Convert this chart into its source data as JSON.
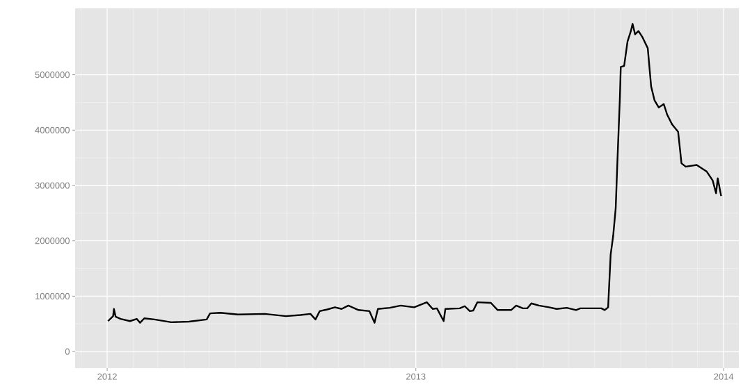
{
  "chart_data": {
    "type": "line",
    "color": "#000000",
    "grid": true,
    "line_style": "solid",
    "xlim": [
      "2011-11-24",
      "2014-01-19"
    ],
    "ylim": [
      -300000,
      6200000
    ],
    "xticks": [
      "2012",
      "2013",
      "2014"
    ],
    "yticks": [
      0,
      1000000,
      2000000,
      3000000,
      4000000,
      5000000
    ],
    "x": [
      "2012-01-02",
      "2012-01-08",
      "2012-01-09",
      "2012-01-11",
      "2012-01-17",
      "2012-01-28",
      "2012-02-05",
      "2012-02-09",
      "2012-02-14",
      "2012-02-26",
      "2012-03-17",
      "2012-04-07",
      "2012-04-28",
      "2012-05-02",
      "2012-05-14",
      "2012-06-04",
      "2012-07-06",
      "2012-07-31",
      "2012-08-17",
      "2012-08-29",
      "2012-09-04",
      "2012-09-09",
      "2012-09-18",
      "2012-09-27",
      "2012-10-05",
      "2012-10-13",
      "2012-10-25",
      "2012-11-07",
      "2012-11-13",
      "2012-11-17",
      "2012-12-01",
      "2012-12-14",
      "2012-12-30",
      "2013-01-14",
      "2013-01-21",
      "2013-01-26",
      "2013-02-03",
      "2013-02-05",
      "2013-02-22",
      "2013-02-28",
      "2013-03-06",
      "2013-03-10",
      "2013-03-15",
      "2013-03-31",
      "2013-04-08",
      "2013-04-24",
      "2013-04-30",
      "2013-05-08",
      "2013-05-13",
      "2013-05-18",
      "2013-05-27",
      "2013-06-08",
      "2013-06-17",
      "2013-06-29",
      "2013-07-10",
      "2013-07-15",
      "2013-08-09",
      "2013-08-13",
      "2013-08-17",
      "2013-08-20",
      "2013-08-23",
      "2013-08-26",
      "2013-08-28",
      "2013-08-31",
      "2013-09-01",
      "2013-09-05",
      "2013-09-09",
      "2013-09-13",
      "2013-09-15",
      "2013-09-18",
      "2013-09-22",
      "2013-09-27",
      "2013-10-03",
      "2013-10-07",
      "2013-10-11",
      "2013-10-16",
      "2013-10-22",
      "2013-10-26",
      "2013-11-01",
      "2013-11-08",
      "2013-11-12",
      "2013-11-17",
      "2013-11-30",
      "2013-12-12",
      "2013-12-19",
      "2013-12-23",
      "2013-12-25",
      "2013-12-29"
    ],
    "values": [
      550000,
      640000,
      770000,
      630000,
      590000,
      550000,
      590000,
      520000,
      600000,
      580000,
      530000,
      540000,
      580000,
      690000,
      700000,
      670000,
      680000,
      640000,
      660000,
      680000,
      580000,
      730000,
      760000,
      800000,
      770000,
      830000,
      750000,
      730000,
      520000,
      770000,
      790000,
      830000,
      800000,
      890000,
      770000,
      780000,
      550000,
      770000,
      780000,
      820000,
      730000,
      740000,
      890000,
      880000,
      750000,
      750000,
      830000,
      780000,
      780000,
      870000,
      830000,
      800000,
      770000,
      790000,
      750000,
      780000,
      780000,
      750000,
      800000,
      1750000,
      2090000,
      2590000,
      3430000,
      4600000,
      5140000,
      5160000,
      5600000,
      5790000,
      5920000,
      5730000,
      5790000,
      5670000,
      5480000,
      4790000,
      4540000,
      4410000,
      4470000,
      4280000,
      4100000,
      3970000,
      3400000,
      3340000,
      3370000,
      3250000,
      3090000,
      2860000,
      3130000,
      2810000
    ]
  }
}
